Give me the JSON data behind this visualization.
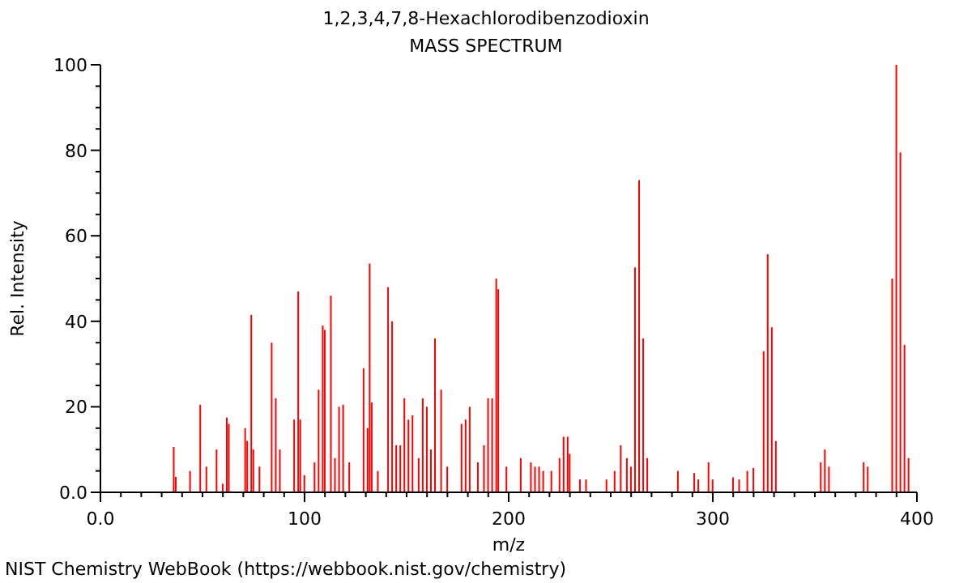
{
  "chart_data": {
    "type": "bar",
    "title": "1,2,3,4,7,8-Hexachlorodibenzodioxin",
    "subtitle": "MASS SPECTRUM",
    "xlabel": "m/z",
    "ylabel": "Rel. Intensity",
    "annotations": [
      "NIST Chemistry WebBook (https://webbook.nist.gov/chemistry)"
    ],
    "x": [
      36,
      37,
      44,
      49,
      52,
      57,
      60,
      62,
      63,
      71,
      72,
      74,
      75,
      78,
      84,
      86,
      88,
      95,
      97,
      98,
      100,
      105,
      107,
      109,
      110,
      113,
      115,
      117,
      119,
      122,
      129,
      131,
      132,
      133,
      136,
      141,
      143,
      145,
      147,
      149,
      151,
      153,
      156,
      158,
      160,
      162,
      164,
      167,
      170,
      177,
      179,
      181,
      185,
      188,
      190,
      192,
      194,
      195,
      199,
      206,
      211,
      213,
      215,
      217,
      221,
      225,
      227,
      229,
      230,
      235,
      238,
      248,
      252,
      255,
      258,
      260,
      262,
      264,
      266,
      268,
      283,
      291,
      293,
      298,
      300,
      310,
      313,
      317,
      320,
      325,
      327,
      329,
      331,
      353,
      355,
      357,
      374,
      376,
      388,
      390,
      392,
      394,
      396
    ],
    "values": [
      10.6,
      3.6,
      5,
      20.5,
      6,
      10,
      2,
      17.5,
      16,
      15,
      12,
      41.5,
      10,
      6,
      35,
      22,
      10,
      17,
      47,
      17,
      4,
      7,
      24,
      39,
      38,
      46,
      8,
      20,
      20.5,
      7,
      29,
      15,
      53.5,
      21,
      5,
      48,
      40,
      11,
      11,
      22,
      17,
      18,
      8,
      22,
      20,
      10,
      36,
      24,
      6,
      16,
      17,
      20,
      7,
      11,
      22,
      22,
      50,
      47.5,
      6,
      8,
      7,
      6,
      6,
      5,
      5,
      8,
      13,
      13,
      9,
      3,
      3,
      3,
      5,
      11,
      8,
      6,
      52.6,
      73,
      36,
      8,
      5,
      4.5,
      3,
      7,
      3,
      3.5,
      3,
      5,
      5.7,
      33,
      55.7,
      38.6,
      12,
      7,
      10,
      6,
      7,
      6,
      50,
      100,
      79.5,
      34.5,
      8
    ],
    "color": "#ff0000",
    "xlim": [
      0,
      400
    ],
    "xticks": [
      {
        "value": 0,
        "label": "0.0"
      },
      {
        "value": 10,
        "label": null
      },
      {
        "value": 20,
        "label": null
      },
      {
        "value": 30,
        "label": null
      },
      {
        "value": 40,
        "label": null
      },
      {
        "value": 50,
        "label": null
      },
      {
        "value": 60,
        "label": null
      },
      {
        "value": 70,
        "label": null
      },
      {
        "value": 80,
        "label": null
      },
      {
        "value": 90,
        "label": null
      },
      100,
      {
        "value": 110,
        "label": null
      },
      {
        "value": 120,
        "label": null
      },
      {
        "value": 130,
        "label": null
      },
      {
        "value": 140,
        "label": null
      },
      {
        "value": 150,
        "label": null
      },
      {
        "value": 160,
        "label": null
      },
      {
        "value": 170,
        "label": null
      },
      {
        "value": 180,
        "label": null
      },
      {
        "value": 190,
        "label": null
      },
      200,
      {
        "value": 210,
        "label": null
      },
      {
        "value": 220,
        "label": null
      },
      {
        "value": 230,
        "label": null
      },
      {
        "value": 240,
        "label": null
      },
      {
        "value": 250,
        "label": null
      },
      {
        "value": 260,
        "label": null
      },
      {
        "value": 270,
        "label": null
      },
      {
        "value": 280,
        "label": null
      },
      {
        "value": 290,
        "label": null
      },
      300,
      {
        "value": 310,
        "label": null
      },
      {
        "value": 320,
        "label": null
      },
      {
        "value": 330,
        "label": null
      },
      {
        "value": 340,
        "label": null
      },
      {
        "value": 350,
        "label": null
      },
      {
        "value": 360,
        "label": null
      },
      {
        "value": 370,
        "label": null
      },
      {
        "value": 380,
        "label": null
      },
      {
        "value": 390,
        "label": null
      },
      400
    ],
    "ylim": [
      0,
      100
    ],
    "yticks": [
      {
        "value": 0,
        "label": "0.0"
      },
      {
        "value": 5,
        "label": null
      },
      {
        "value": 10,
        "label": null
      },
      {
        "value": 15,
        "label": null
      },
      20,
      {
        "value": 25,
        "label": null
      },
      {
        "value": 30,
        "label": null
      },
      {
        "value": 35,
        "label": null
      },
      40,
      {
        "value": 45,
        "label": null
      },
      {
        "value": 50,
        "label": null
      },
      {
        "value": 55,
        "label": null
      },
      60,
      {
        "value": 65,
        "label": null
      },
      {
        "value": 70,
        "label": null
      },
      {
        "value": 75,
        "label": null
      },
      80,
      {
        "value": 85,
        "label": null
      },
      {
        "value": 90,
        "label": null
      },
      {
        "value": 95,
        "label": null
      },
      100
    ],
    "grid": false,
    "legend": false
  }
}
